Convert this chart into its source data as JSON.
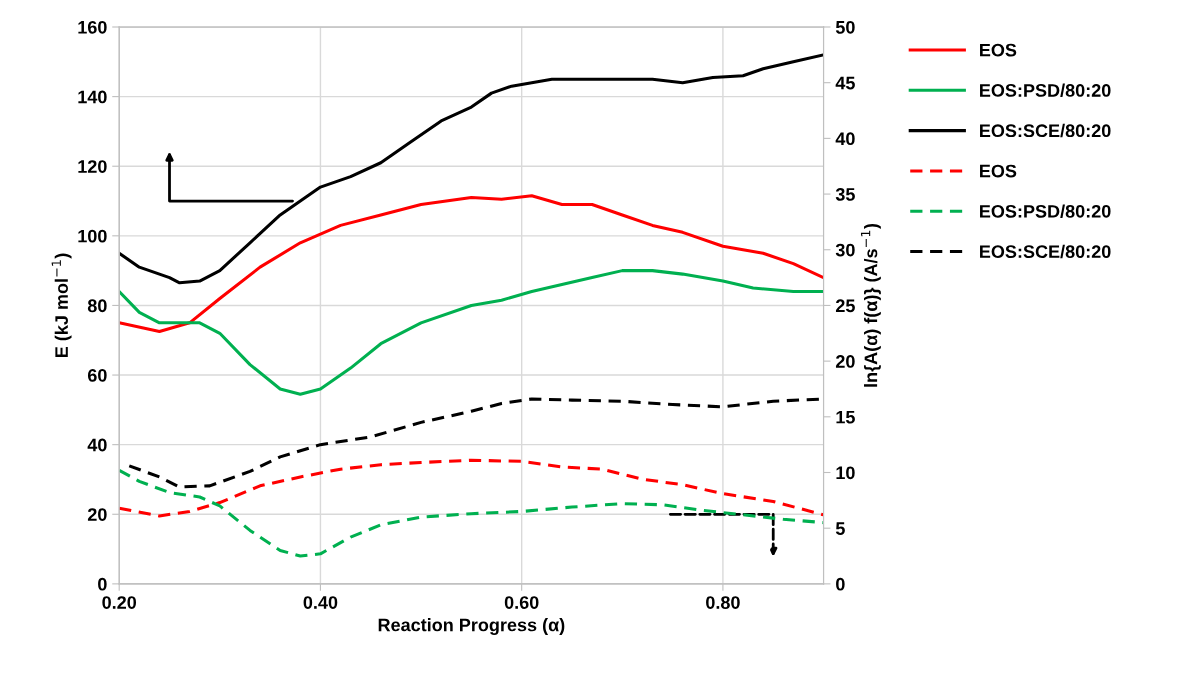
{
  "chart_data": {
    "type": "line",
    "xlabel": "Reaction Progress (α)",
    "ylabel": "E (kJ mol$^{−1}$)",
    "y2label": "ln{A(α) f(α)} (A/s$^{−1}$)",
    "xlim": [
      0.2,
      0.9
    ],
    "xticks": [
      {
        "value": 0.2,
        "label": "0.20"
      },
      {
        "value": 0.4,
        "label": "0.40"
      },
      {
        "value": 0.6,
        "label": "0.60"
      },
      {
        "value": 0.8,
        "label": "0.80"
      }
    ],
    "ylim": [
      0,
      160
    ],
    "yticks": [
      0,
      20,
      40,
      60,
      80,
      100,
      120,
      140,
      160
    ],
    "y2lim": [
      0,
      50
    ],
    "y2ticks": [
      0,
      5,
      10,
      15,
      20,
      25,
      30,
      35,
      40,
      45,
      50
    ],
    "grid": true,
    "legend": "right",
    "marker": "none",
    "series": [
      {
        "name": "EOS",
        "color": "#ff0000",
        "line_style": "solid",
        "x": [
          0.2,
          0.24,
          0.27,
          0.3,
          0.34,
          0.38,
          0.42,
          0.46,
          0.5,
          0.55,
          0.58,
          0.61,
          0.64,
          0.67,
          0.7,
          0.73,
          0.76,
          0.8,
          0.84,
          0.87,
          0.9
        ],
        "values": [
          75,
          72.5,
          75,
          82,
          91,
          98,
          103,
          106,
          109,
          111,
          110.5,
          111.5,
          109,
          109,
          106,
          103,
          101,
          97,
          95,
          92,
          88
        ]
      },
      {
        "name": "EOS:PSD/80:20",
        "color": "#00b050",
        "line_style": "solid",
        "x": [
          0.2,
          0.22,
          0.24,
          0.28,
          0.3,
          0.33,
          0.36,
          0.38,
          0.4,
          0.43,
          0.46,
          0.5,
          0.55,
          0.58,
          0.61,
          0.64,
          0.67,
          0.7,
          0.73,
          0.76,
          0.8,
          0.83,
          0.87,
          0.9
        ],
        "values": [
          84,
          78,
          75,
          75,
          72,
          63,
          56,
          54.5,
          56,
          62,
          69,
          75,
          80,
          81.5,
          84,
          86,
          88,
          90,
          90,
          89,
          87,
          85,
          84,
          84
        ]
      },
      {
        "name": "EOS:SCE/80:20",
        "color": "#000000",
        "line_style": "solid",
        "x": [
          0.2,
          0.22,
          0.25,
          0.26,
          0.28,
          0.3,
          0.33,
          0.36,
          0.38,
          0.4,
          0.43,
          0.46,
          0.49,
          0.52,
          0.55,
          0.57,
          0.59,
          0.61,
          0.63,
          0.66,
          0.7,
          0.73,
          0.76,
          0.79,
          0.82,
          0.84,
          0.87,
          0.9
        ],
        "values": [
          95,
          91,
          88,
          86.5,
          87,
          90,
          98,
          106,
          110,
          114,
          117,
          121,
          127,
          133,
          137,
          141,
          143,
          144,
          145,
          145,
          145,
          145,
          144,
          145.5,
          146,
          148,
          150,
          152
        ]
      },
      {
        "name": "EOS",
        "color": "#ff0000",
        "line_style": "dashed",
        "axis": "y2",
        "x": [
          0.2,
          0.24,
          0.27,
          0.3,
          0.34,
          0.38,
          0.42,
          0.46,
          0.5,
          0.55,
          0.6,
          0.64,
          0.68,
          0.72,
          0.76,
          0.8,
          0.85,
          0.9
        ],
        "values": [
          6.8,
          6.1,
          6.5,
          7.3,
          8.8,
          9.6,
          10.3,
          10.7,
          10.9,
          11.1,
          11.0,
          10.5,
          10.3,
          9.4,
          8.9,
          8.1,
          7.4,
          6.2
        ]
      },
      {
        "name": "EOS:PSD/80:20",
        "color": "#00b050",
        "line_style": "dashed",
        "axis": "y2",
        "x": [
          0.2,
          0.22,
          0.25,
          0.28,
          0.3,
          0.33,
          0.36,
          0.38,
          0.4,
          0.43,
          0.46,
          0.5,
          0.55,
          0.6,
          0.65,
          0.7,
          0.74,
          0.78,
          0.82,
          0.86,
          0.9
        ],
        "values": [
          10.2,
          9.2,
          8.2,
          7.8,
          7.0,
          4.8,
          3.0,
          2.5,
          2.7,
          4.2,
          5.3,
          6.0,
          6.3,
          6.5,
          6.9,
          7.2,
          7.1,
          6.6,
          6.2,
          5.8,
          5.5
        ]
      },
      {
        "name": "EOS:SCE/80:20",
        "color": "#000000",
        "line_style": "dashed",
        "axis": "y2",
        "x": [
          0.21,
          0.24,
          0.26,
          0.29,
          0.33,
          0.36,
          0.4,
          0.45,
          0.5,
          0.55,
          0.58,
          0.61,
          0.65,
          0.7,
          0.75,
          0.8,
          0.85,
          0.9
        ],
        "values": [
          10.6,
          9.6,
          8.7,
          8.8,
          10.1,
          11.4,
          12.5,
          13.2,
          14.5,
          15.5,
          16.2,
          16.6,
          16.5,
          16.4,
          16.1,
          15.9,
          16.4,
          16.6
        ]
      }
    ]
  }
}
